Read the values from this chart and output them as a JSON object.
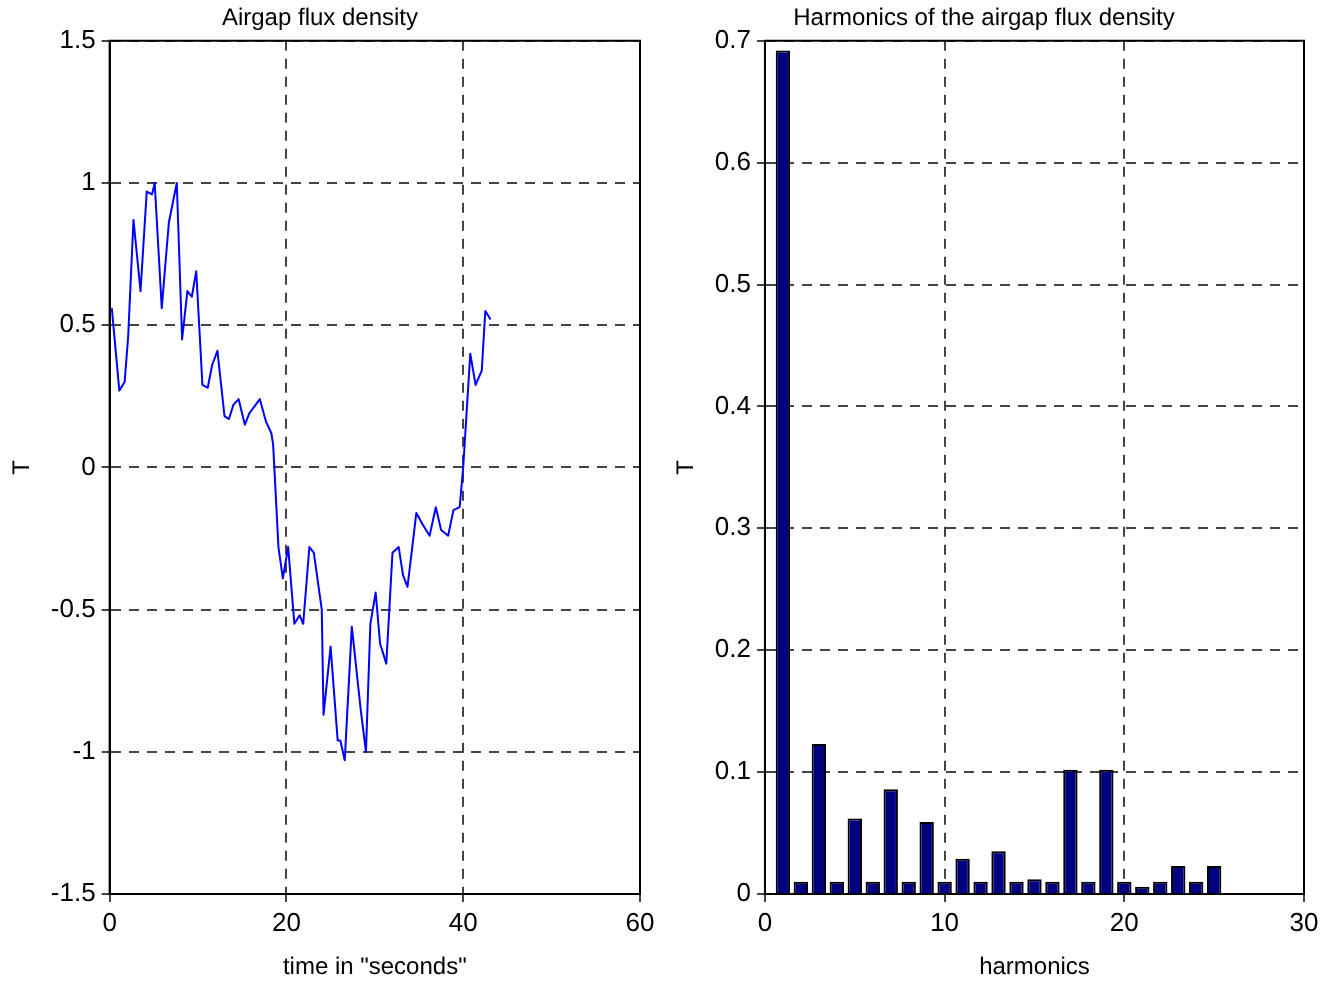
{
  "chart_data": [
    {
      "type": "line",
      "title": "Airgap flux density",
      "xlabel": "time in \"seconds\"",
      "ylabel": "T",
      "color": "#0000ff",
      "grid": true,
      "x": [
        0.25,
        1.1,
        1.7,
        2.1,
        2.7,
        3.5,
        4.2,
        4.8,
        5.1,
        5.9,
        6.7,
        7.6,
        8.2,
        8.8,
        9.3,
        9.8,
        10.5,
        11.1,
        11.6,
        12.2,
        13.0,
        13.5,
        14.0,
        14.6,
        15.3,
        15.8,
        17.0,
        17.7,
        18.3,
        18.5,
        19.1,
        19.6,
        20.2,
        20.9,
        21.5,
        21.9,
        22.6,
        23.1,
        24.0,
        24.2,
        25.0,
        25.8,
        26.1,
        26.6,
        27.4,
        28.4,
        29.0,
        29.5,
        30.1,
        30.6,
        31.3,
        32.0,
        32.7,
        33.2,
        33.7,
        34.7,
        35.4,
        36.2,
        36.9,
        37.5,
        38.3,
        38.9,
        39.6,
        40.0,
        40.8,
        41.4,
        42.1,
        42.5,
        43.1
      ],
      "values": [
        0.56,
        0.27,
        0.3,
        0.46,
        0.87,
        0.62,
        0.97,
        0.96,
        1.0,
        0.56,
        0.86,
        1.0,
        0.45,
        0.62,
        0.6,
        0.69,
        0.29,
        0.28,
        0.36,
        0.41,
        0.18,
        0.17,
        0.22,
        0.24,
        0.15,
        0.19,
        0.24,
        0.16,
        0.12,
        0.08,
        -0.28,
        -0.39,
        -0.28,
        -0.55,
        -0.52,
        -0.55,
        -0.28,
        -0.3,
        -0.5,
        -0.87,
        -0.63,
        -0.96,
        -0.96,
        -1.03,
        -0.56,
        -0.85,
        -1.0,
        -0.55,
        -0.44,
        -0.62,
        -0.69,
        -0.3,
        -0.28,
        -0.38,
        -0.42,
        -0.16,
        -0.2,
        -0.24,
        -0.14,
        -0.22,
        -0.24,
        -0.15,
        -0.14,
        0.0,
        0.4,
        0.29,
        0.34,
        0.55,
        0.52
      ],
      "xlim": [
        0,
        60
      ],
      "xticks": [
        0,
        20,
        40,
        60
      ],
      "ylim": [
        -1.5,
        1.5
      ],
      "yticks": [
        -1.5,
        -1,
        -0.5,
        0,
        0.5,
        1,
        1.5
      ]
    },
    {
      "type": "bar",
      "title": "Harmonics of the airgap flux density",
      "xlabel": "harmonics",
      "ylabel": "T",
      "color": "#000080",
      "grid": true,
      "x": [
        1,
        2,
        3,
        4,
        5,
        6,
        7,
        8,
        9,
        10,
        11,
        12,
        13,
        14,
        15,
        16,
        17,
        18,
        19,
        20,
        21,
        22,
        23,
        24,
        25
      ],
      "values": [
        0.692,
        0.01,
        0.123,
        0.01,
        0.062,
        0.01,
        0.086,
        0.01,
        0.059,
        0.01,
        0.029,
        0.01,
        0.035,
        0.01,
        0.012,
        0.01,
        0.102,
        0.01,
        0.102,
        0.01,
        0.006,
        0.01,
        0.023,
        0.01,
        0.023
      ],
      "xlim": [
        0,
        30
      ],
      "xticks": [
        0,
        10,
        20,
        30
      ],
      "ylim": [
        0,
        0.7
      ],
      "yticks": [
        0,
        0.1,
        0.2,
        0.3,
        0.4,
        0.5,
        0.6,
        0.7
      ]
    }
  ]
}
